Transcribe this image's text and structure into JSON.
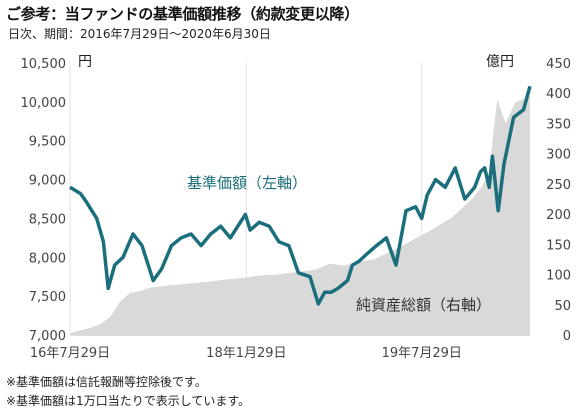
{
  "title": "ご参考：当ファンドの基準価額推移（約款変更以降）",
  "subtitle": "日次、期間：2016年7月29日～2020年6月30日",
  "notes": [
    "※基準価額は信託報酬等控除後です。",
    "※基準価額は1万口当たりで表示しています。"
  ],
  "colors": {
    "nav_line": "#1b6f7c",
    "assets_area": "#d9d9d9",
    "nav_label": "#1a6e7a"
  },
  "chart_data": {
    "type": "line",
    "x_tick_labels": [
      "16年7月29日",
      "18年1月29日",
      "19年7月29日"
    ],
    "y_left": {
      "unit": "円",
      "ticks": [
        "7,000",
        "7,500",
        "8,000",
        "8,500",
        "9,000",
        "9,500",
        "10,000",
        "10,500"
      ],
      "range": [
        7000,
        10500
      ]
    },
    "y_right": {
      "unit": "億円",
      "ticks": [
        "0",
        "50",
        "100",
        "150",
        "200",
        "250",
        "300",
        "350",
        "400",
        "450"
      ],
      "range": [
        0,
        450
      ]
    },
    "legend_placement": "inline annotations",
    "grid": "vertical lines only",
    "series": [
      {
        "name": "基準価額（左軸）",
        "type": "line",
        "axis": "left",
        "x": [
          "2016-07-29",
          "2016-08-31",
          "2016-09-20",
          "2016-10-20",
          "2016-11-10",
          "2016-11-25",
          "2016-12-15",
          "2017-01-10",
          "2017-02-10",
          "2017-03-10",
          "2017-04-14",
          "2017-05-10",
          "2017-06-10",
          "2017-07-10",
          "2017-08-10",
          "2017-09-10",
          "2017-10-10",
          "2017-11-10",
          "2017-12-10",
          "2018-01-10",
          "2018-01-26",
          "2018-02-10",
          "2018-03-10",
          "2018-04-10",
          "2018-05-10",
          "2018-06-10",
          "2018-07-10",
          "2018-08-15",
          "2018-09-10",
          "2018-09-30",
          "2018-10-20",
          "2018-11-10",
          "2018-12-10",
          "2018-12-25",
          "2019-01-15",
          "2019-02-10",
          "2019-03-10",
          "2019-04-10",
          "2019-05-10",
          "2019-06-10",
          "2019-07-10",
          "2019-07-29",
          "2019-08-15",
          "2019-09-10",
          "2019-10-10",
          "2019-11-10",
          "2019-12-10",
          "2020-01-10",
          "2020-01-28",
          "2020-02-10",
          "2020-02-24",
          "2020-03-05",
          "2020-03-23",
          "2020-04-10",
          "2020-05-10",
          "2020-06-10",
          "2020-06-30"
        ],
        "values": [
          8900,
          8820,
          8700,
          8500,
          8200,
          7600,
          7900,
          8000,
          8300,
          8150,
          7700,
          7850,
          8150,
          8250,
          8300,
          8150,
          8300,
          8400,
          8250,
          8450,
          8550,
          8350,
          8450,
          8400,
          8200,
          8150,
          7800,
          7750,
          7400,
          7550,
          7550,
          7600,
          7700,
          7900,
          7950,
          8050,
          8150,
          8250,
          7900,
          8600,
          8650,
          8500,
          8800,
          9000,
          8900,
          9150,
          8750,
          8900,
          9100,
          9150,
          8900,
          9300,
          8600,
          9200,
          9800,
          9900,
          10200
        ]
      },
      {
        "name": "純資産総額（右軸）",
        "type": "area",
        "axis": "right",
        "x": [
          "2016-07-29",
          "2016-09-01",
          "2016-10-01",
          "2016-11-01",
          "2016-12-01",
          "2017-01-01",
          "2017-02-01",
          "2017-03-01",
          "2017-04-01",
          "2017-06-01",
          "2017-08-01",
          "2017-10-01",
          "2017-12-01",
          "2018-01-29",
          "2018-03-01",
          "2018-05-01",
          "2018-07-01",
          "2018-09-01",
          "2018-10-15",
          "2018-12-01",
          "2019-01-01",
          "2019-03-01",
          "2019-05-01",
          "2019-07-29",
          "2019-09-01",
          "2019-11-01",
          "2020-01-01",
          "2020-02-01",
          "2020-02-24",
          "2020-03-05",
          "2020-03-20",
          "2020-04-15",
          "2020-05-15",
          "2020-06-30"
        ],
        "values": [
          3,
          8,
          12,
          18,
          30,
          55,
          70,
          72,
          78,
          82,
          85,
          88,
          92,
          95,
          98,
          100,
          104,
          108,
          118,
          115,
          120,
          125,
          140,
          165,
          175,
          195,
          225,
          245,
          270,
          320,
          390,
          350,
          385,
          395
        ]
      }
    ],
    "annotations": [
      "基準価額（左軸）",
      "純資産総額（右軸）"
    ]
  }
}
